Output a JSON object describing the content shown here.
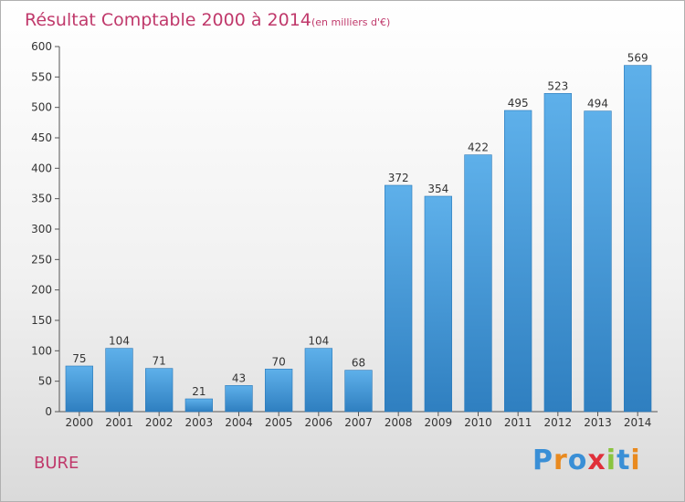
{
  "chart_data": {
    "type": "bar",
    "title": "Résultat Comptable 2000 à 2014",
    "subtitle": "(en milliers d'€)",
    "categories": [
      "2000",
      "2001",
      "2002",
      "2003",
      "2004",
      "2005",
      "2006",
      "2007",
      "2008",
      "2009",
      "2010",
      "2011",
      "2012",
      "2013",
      "2014"
    ],
    "values": [
      75,
      104,
      71,
      21,
      43,
      70,
      104,
      68,
      372,
      354,
      422,
      495,
      523,
      494,
      569
    ],
    "yticks": [
      0,
      50,
      100,
      150,
      200,
      250,
      300,
      350,
      400,
      450,
      500,
      550,
      600
    ],
    "ylim": [
      0,
      600
    ],
    "xlabel": "",
    "ylabel": "",
    "grid": false,
    "bar_color": "#4aa2e0",
    "annotation": "BURE",
    "annotation_color": "#c0396b"
  },
  "logo": {
    "letters": [
      "P",
      "r",
      "o",
      "x",
      "i",
      "t",
      "i"
    ],
    "colors": [
      "#3a8fd6",
      "#e98a1f",
      "#3a8fd6",
      "#e0303a",
      "#8ac43f",
      "#3a8fd6",
      "#e98a1f"
    ]
  }
}
